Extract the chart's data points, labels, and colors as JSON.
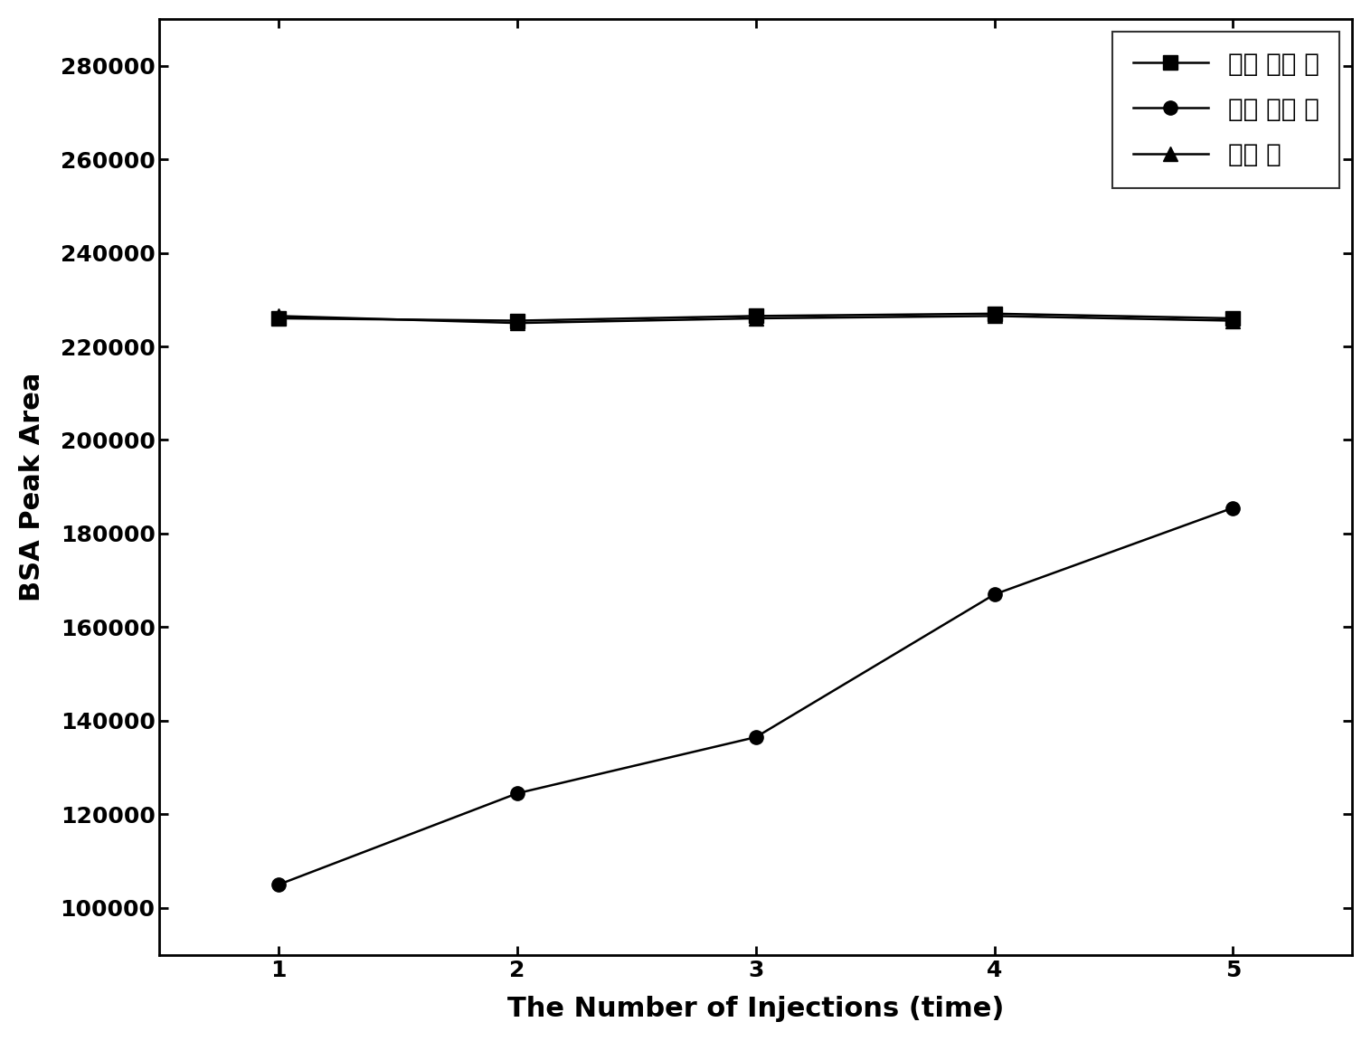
{
  "x": [
    1,
    2,
    3,
    4,
    5
  ],
  "series": [
    {
      "label": "改性 后介 质",
      "y": [
        226000,
        225500,
        226500,
        227000,
        226000
      ],
      "marker": "s",
      "color": "#000000",
      "markersize": 11
    },
    {
      "label": "改性 前介 质",
      "y": [
        105000,
        124500,
        136500,
        167000,
        185500
      ],
      "marker": "o",
      "color": "#000000",
      "markersize": 11
    },
    {
      "label": "连接 头",
      "y": [
        226500,
        225000,
        226000,
        226500,
        225500
      ],
      "marker": "^",
      "color": "#000000",
      "markersize": 11
    }
  ],
  "xlabel": "The Number of Injections (time)",
  "ylabel": "BSA Peak Area",
  "xlim": [
    0.5,
    5.5
  ],
  "ylim": [
    90000,
    290000
  ],
  "yticks": [
    100000,
    120000,
    140000,
    160000,
    180000,
    200000,
    220000,
    240000,
    260000,
    280000
  ],
  "xticks": [
    1,
    2,
    3,
    4,
    5
  ],
  "legend_loc": "upper right",
  "linewidth": 1.8,
  "title": ""
}
